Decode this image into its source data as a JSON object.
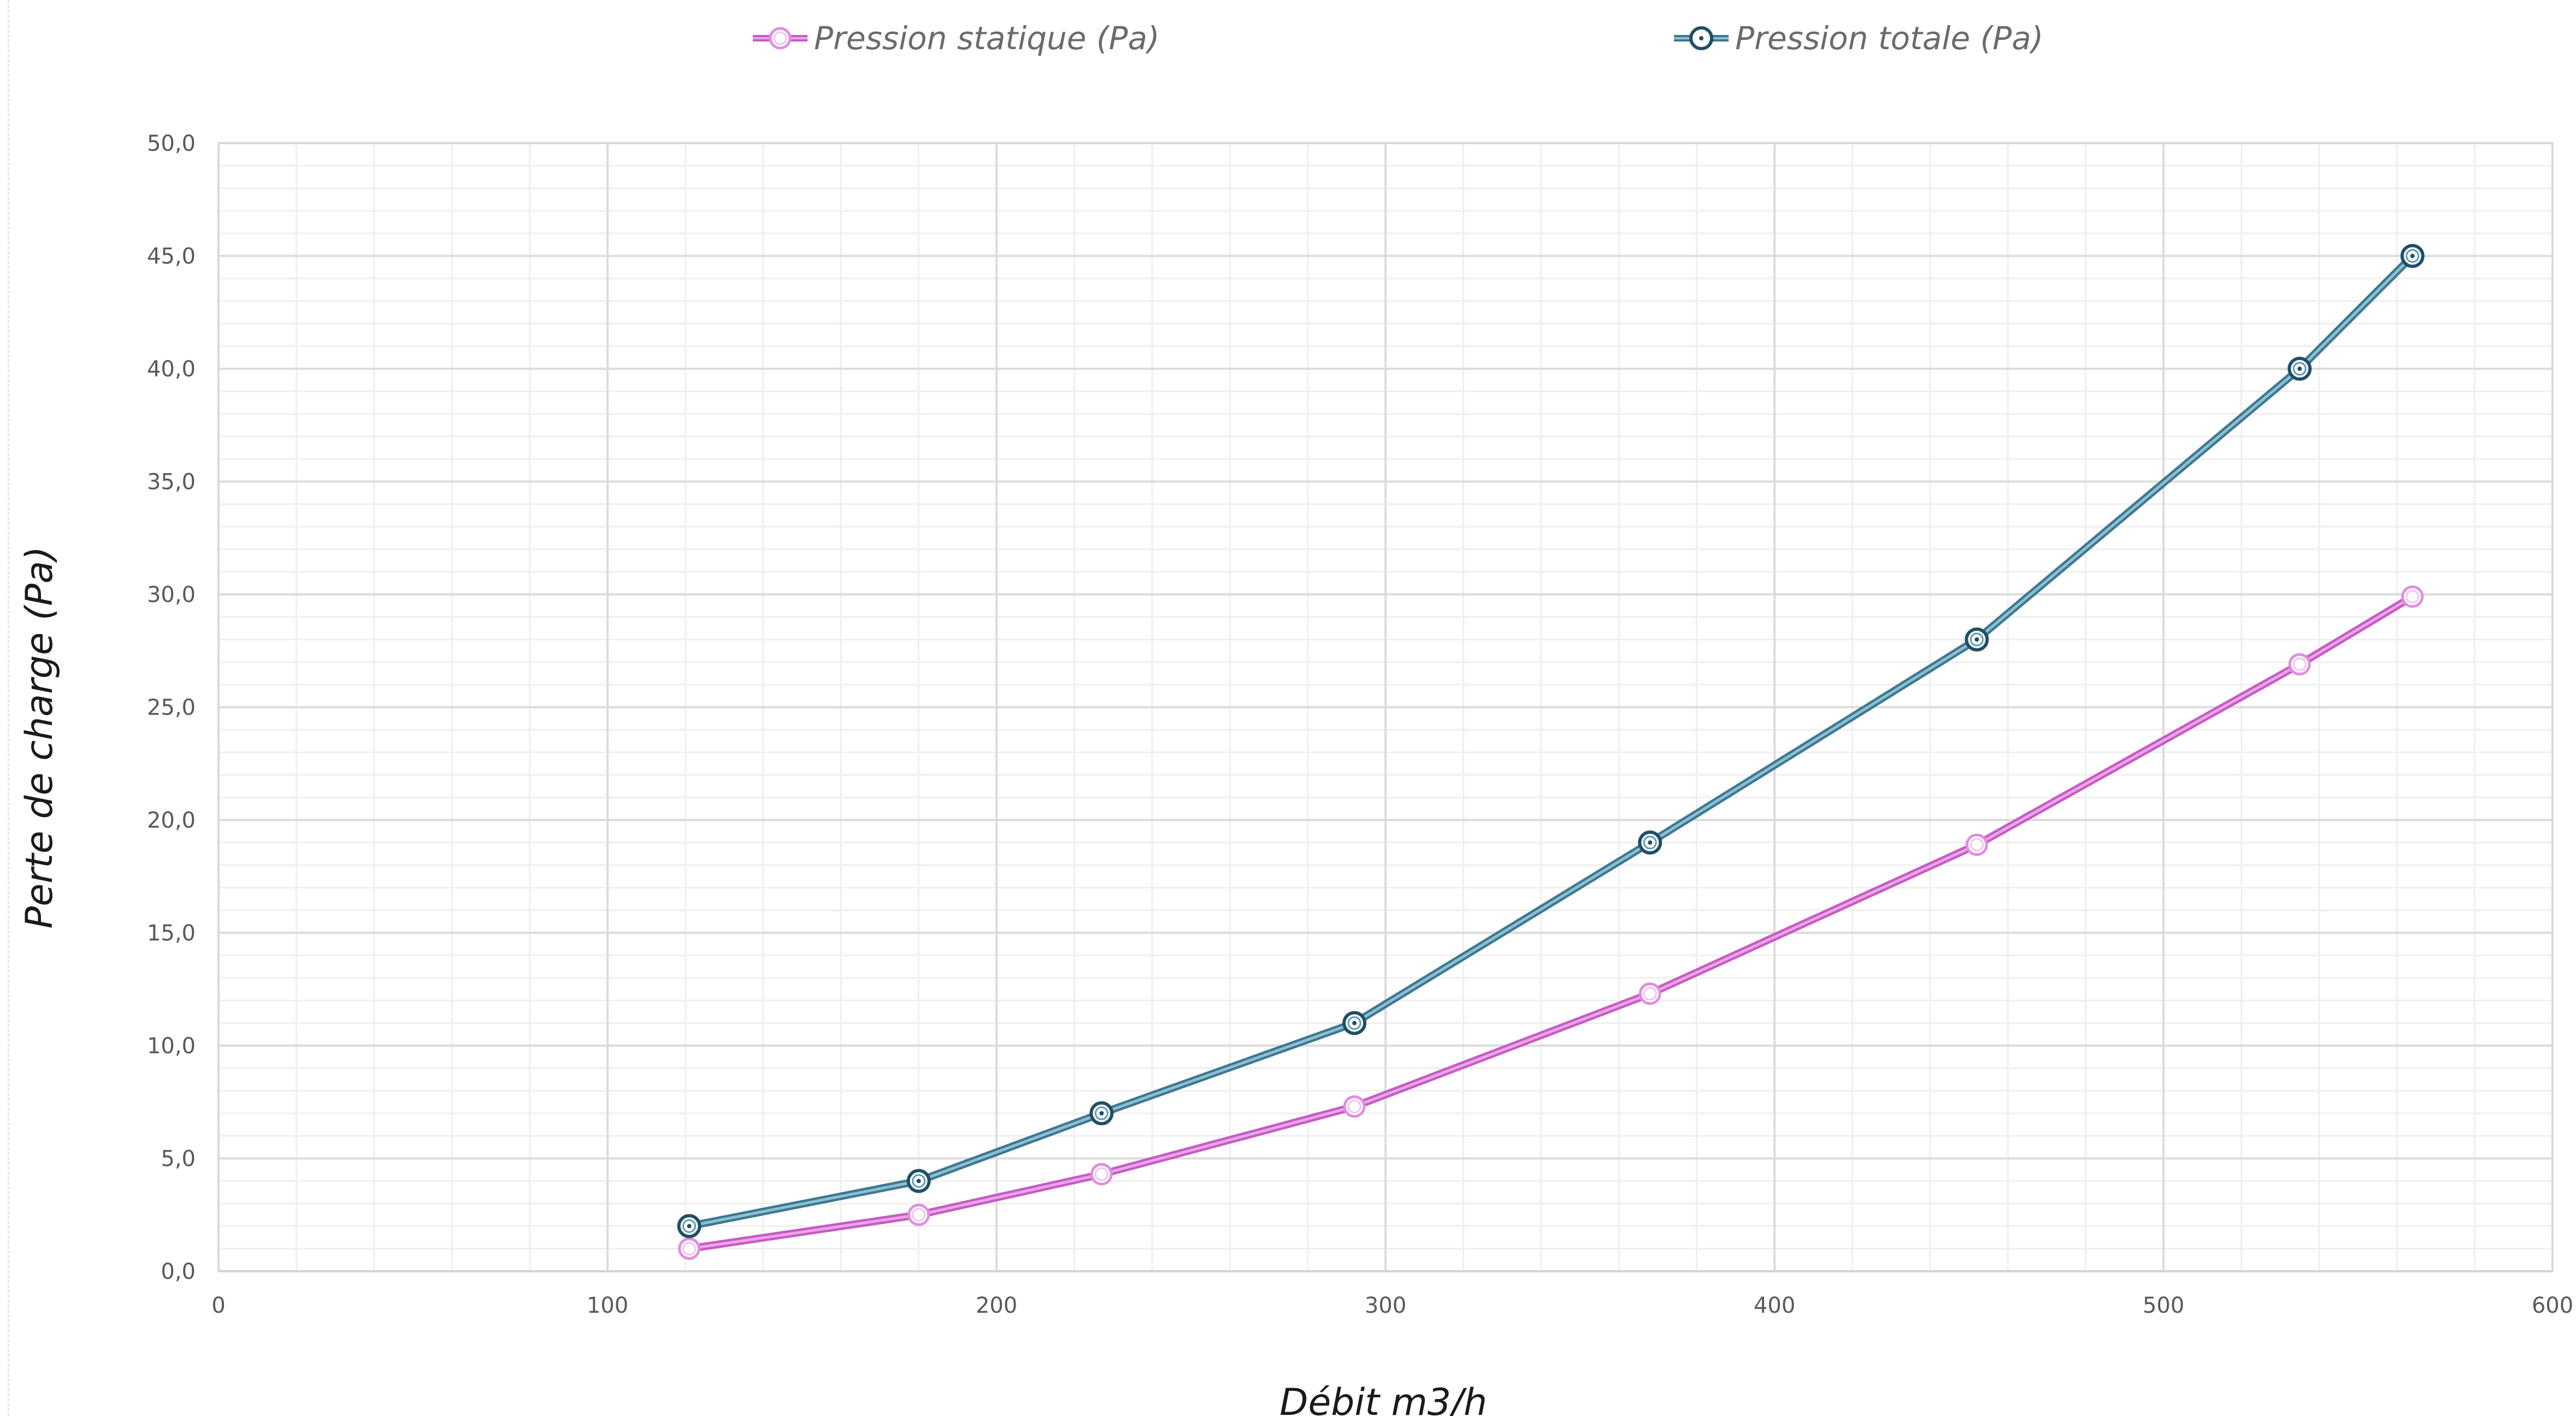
{
  "chart_data": {
    "type": "line",
    "title": "",
    "xlabel": "Débit m3/h",
    "ylabel": "Perte de charge (Pa)",
    "xlim": [
      0,
      600
    ],
    "ylim": [
      0,
      50
    ],
    "x_ticks": [
      0,
      100,
      200,
      300,
      400,
      500,
      600
    ],
    "y_ticks": [
      0,
      5,
      10,
      15,
      20,
      25,
      30,
      35,
      40,
      45,
      50
    ],
    "x_tick_labels": [
      "0",
      "100",
      "200",
      "300",
      "400",
      "500",
      "600"
    ],
    "y_tick_labels": [
      "0,0",
      "5,0",
      "10,0",
      "15,0",
      "20,0",
      "25,0",
      "30,0",
      "35,0",
      "40,0",
      "45,0",
      "50,0"
    ],
    "grid": true,
    "legend_position": "top",
    "series": [
      {
        "name": "Pression statique (Pa)",
        "color": "#c65bc4",
        "marker": "circle",
        "x": [
          121,
          180,
          227,
          292,
          368,
          452,
          535,
          564
        ],
        "y": [
          1.0,
          2.5,
          4.3,
          7.3,
          12.3,
          18.9,
          26.9,
          29.9
        ]
      },
      {
        "name": "Pression totale (Pa)",
        "color": "#3d7891",
        "marker": "circle-dot",
        "x": [
          121,
          180,
          227,
          292,
          368,
          452,
          535,
          564
        ],
        "y": [
          2.0,
          4.0,
          7.0,
          11.0,
          19.0,
          28.0,
          40.0,
          45.0
        ]
      }
    ]
  }
}
